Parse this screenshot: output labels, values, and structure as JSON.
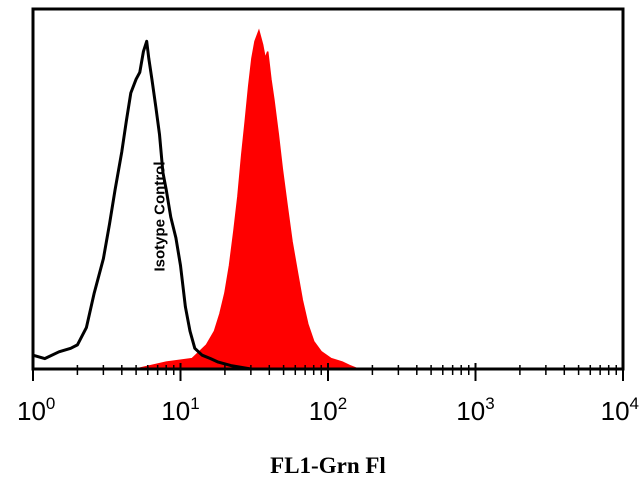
{
  "chart_data": {
    "type": "area",
    "title": "",
    "xlabel": "FL1-Grn Fl",
    "ylabel": "",
    "x_scale": "log",
    "xlim": [
      1,
      10000
    ],
    "ylim": [
      0,
      1
    ],
    "grid": false,
    "legend": "none",
    "x_ticks": [
      {
        "base": "10",
        "exp": "0"
      },
      {
        "base": "10",
        "exp": "1"
      },
      {
        "base": "10",
        "exp": "2"
      },
      {
        "base": "10",
        "exp": "3"
      },
      {
        "base": "10",
        "exp": "4"
      }
    ],
    "annotations": [
      {
        "text": "Isotype Control",
        "x": 7.2,
        "y": 0.5,
        "orientation": "vertical"
      }
    ],
    "series": [
      {
        "label": "Isotype Control",
        "style": "outline",
        "color": "#000000",
        "points": [
          [
            1.0,
            0.04
          ],
          [
            1.2,
            0.03
          ],
          [
            1.5,
            0.05
          ],
          [
            1.8,
            0.06
          ],
          [
            2.0,
            0.07
          ],
          [
            2.3,
            0.12
          ],
          [
            2.6,
            0.22
          ],
          [
            3.0,
            0.32
          ],
          [
            3.3,
            0.42
          ],
          [
            3.6,
            0.52
          ],
          [
            4.0,
            0.63
          ],
          [
            4.3,
            0.72
          ],
          [
            4.6,
            0.8
          ],
          [
            5.0,
            0.84
          ],
          [
            5.3,
            0.86
          ],
          [
            5.6,
            0.92
          ],
          [
            5.9,
            0.95
          ],
          [
            6.1,
            0.9
          ],
          [
            6.4,
            0.84
          ],
          [
            6.8,
            0.76
          ],
          [
            7.2,
            0.68
          ],
          [
            7.6,
            0.57
          ],
          [
            8.0,
            0.52
          ],
          [
            8.6,
            0.44
          ],
          [
            9.3,
            0.38
          ],
          [
            10.0,
            0.3
          ],
          [
            10.8,
            0.18
          ],
          [
            11.6,
            0.11
          ],
          [
            12.5,
            0.06
          ],
          [
            14.0,
            0.04
          ],
          [
            16.0,
            0.03
          ],
          [
            18.0,
            0.02
          ],
          [
            22.0,
            0.01
          ],
          [
            30.0,
            0.0
          ]
        ]
      },
      {
        "label": "",
        "style": "filled",
        "color": "#ff0000",
        "points": [
          [
            5.0,
            0.0
          ],
          [
            8.0,
            0.02
          ],
          [
            12.0,
            0.03
          ],
          [
            15.0,
            0.07
          ],
          [
            17.0,
            0.11
          ],
          [
            18.5,
            0.16
          ],
          [
            20.0,
            0.22
          ],
          [
            21.5,
            0.3
          ],
          [
            23.0,
            0.4
          ],
          [
            24.5,
            0.5
          ],
          [
            26.0,
            0.62
          ],
          [
            27.5,
            0.72
          ],
          [
            29.0,
            0.82
          ],
          [
            30.5,
            0.9
          ],
          [
            32.0,
            0.95
          ],
          [
            34.0,
            0.98
          ],
          [
            36.0,
            0.94
          ],
          [
            37.5,
            0.9
          ],
          [
            39.0,
            0.92
          ],
          [
            41.0,
            0.84
          ],
          [
            43.0,
            0.78
          ],
          [
            46.0,
            0.68
          ],
          [
            49.0,
            0.58
          ],
          [
            53.0,
            0.47
          ],
          [
            57.0,
            0.37
          ],
          [
            62.0,
            0.28
          ],
          [
            67.0,
            0.2
          ],
          [
            73.0,
            0.13
          ],
          [
            80.0,
            0.08
          ],
          [
            90.0,
            0.05
          ],
          [
            105.0,
            0.03
          ],
          [
            125.0,
            0.02
          ],
          [
            140.0,
            0.01
          ],
          [
            160.0,
            0.0
          ]
        ]
      }
    ]
  }
}
